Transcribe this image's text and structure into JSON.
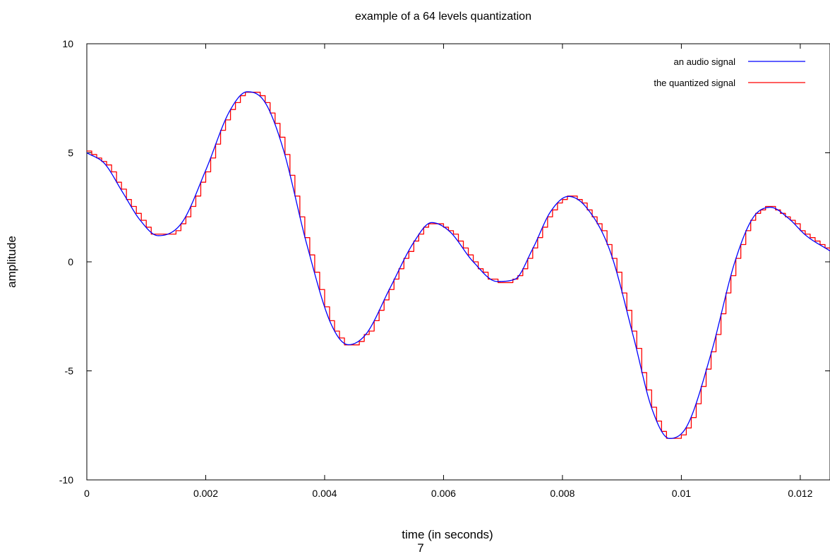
{
  "chart_data": {
    "type": "line",
    "title": "example of a 64 levels quantization",
    "xlabel": "time (in seconds)",
    "ylabel": "amplitude",
    "xlim": [
      0,
      0.0125
    ],
    "ylim": [
      -10,
      10
    ],
    "xticks": [
      0,
      0.002,
      0.004,
      0.006,
      0.008,
      0.01,
      0.012
    ],
    "xtick_labels": [
      "0",
      "0.002",
      "0.004",
      "0.006",
      "0.008",
      "0.01",
      "0.012"
    ],
    "yticks": [
      -10,
      -5,
      0,
      5,
      10
    ],
    "ytick_labels": [
      "-10",
      "-5",
      "0",
      "5",
      "10"
    ],
    "grid": false,
    "legend_position": "top-right",
    "quantization_levels": 64,
    "series": [
      {
        "name": "an audio signal",
        "color": "#0000ff",
        "style": "smooth",
        "x": [
          0,
          0.0003,
          0.0006,
          0.0009,
          0.0012,
          0.0016,
          0.002,
          0.0024,
          0.0027,
          0.003,
          0.0033,
          0.0037,
          0.0041,
          0.0044,
          0.0047,
          0.0051,
          0.0055,
          0.0058,
          0.0061,
          0.0065,
          0.0069,
          0.0072,
          0.0075,
          0.0078,
          0.0081,
          0.0084,
          0.0088,
          0.0092,
          0.0095,
          0.0098,
          0.0101,
          0.0105,
          0.0109,
          0.0112,
          0.0115,
          0.0118,
          0.0121,
          0.0125
        ],
        "y": [
          5.0,
          4.5,
          3.2,
          1.9,
          1.2,
          1.8,
          4.2,
          6.9,
          7.8,
          7.3,
          5.2,
          0.8,
          -2.8,
          -3.8,
          -3.3,
          -1.2,
          0.9,
          1.8,
          1.4,
          0.0,
          -0.9,
          -0.8,
          0.6,
          2.3,
          3.0,
          2.5,
          0.5,
          -3.5,
          -6.7,
          -8.1,
          -7.5,
          -4.2,
          0.0,
          2.0,
          2.5,
          2.0,
          1.2,
          0.5
        ]
      },
      {
        "name": "the quantized signal",
        "color": "#ff0000",
        "style": "step",
        "x": [
          0,
          0.0003,
          0.0006,
          0.0009,
          0.0012,
          0.0016,
          0.002,
          0.0024,
          0.0027,
          0.003,
          0.0033,
          0.0037,
          0.0041,
          0.0044,
          0.0047,
          0.0051,
          0.0055,
          0.0058,
          0.0061,
          0.0065,
          0.0069,
          0.0072,
          0.0075,
          0.0078,
          0.0081,
          0.0084,
          0.0088,
          0.0092,
          0.0095,
          0.0098,
          0.0101,
          0.0105,
          0.0109,
          0.0112,
          0.0115,
          0.0118,
          0.0121,
          0.0125
        ],
        "y": [
          5.0,
          4.5,
          3.2,
          1.9,
          1.2,
          1.8,
          4.2,
          6.9,
          7.8,
          7.3,
          5.2,
          0.8,
          -2.8,
          -3.8,
          -3.3,
          -1.2,
          0.9,
          1.8,
          1.4,
          0.0,
          -0.9,
          -0.8,
          0.6,
          2.3,
          3.0,
          2.5,
          0.5,
          -3.5,
          -6.7,
          -8.1,
          -7.5,
          -4.2,
          0.0,
          2.0,
          2.5,
          2.0,
          1.2,
          0.5
        ]
      }
    ]
  },
  "page_number": "7"
}
